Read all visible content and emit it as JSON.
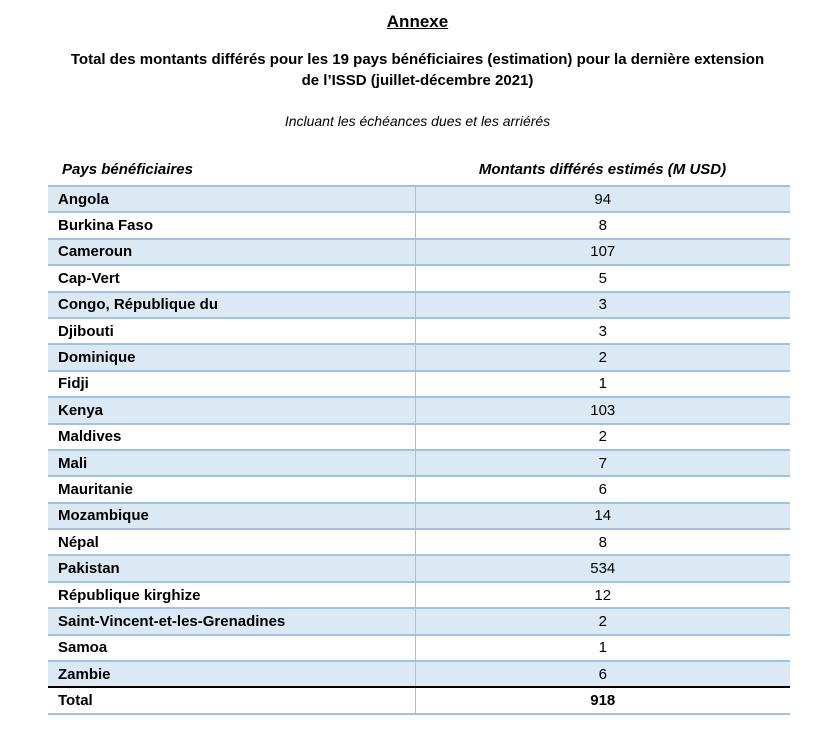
{
  "page": {
    "title": "Annexe",
    "heading_line1": "Total des montants différés pour les 19 pays bénéficiaires (estimation) pour la dernière extension",
    "heading_line2": "de l’ISSD (juillet-décembre 2021)",
    "subtitle": "Incluant les échéances dues et les arriérés"
  },
  "table": {
    "col_country": "Pays bénéficiaires",
    "col_amount": "Montants différés estimés (M USD)",
    "rows": [
      {
        "country": "Angola",
        "amount": "94"
      },
      {
        "country": "Burkina Faso",
        "amount": "8"
      },
      {
        "country": "Cameroun",
        "amount": "107"
      },
      {
        "country": "Cap-Vert",
        "amount": "5"
      },
      {
        "country": "Congo, République du",
        "amount": "3"
      },
      {
        "country": "Djibouti",
        "amount": "3"
      },
      {
        "country": "Dominique",
        "amount": "2"
      },
      {
        "country": "Fidji",
        "amount": "1"
      },
      {
        "country": "Kenya",
        "amount": "103"
      },
      {
        "country": "Maldives",
        "amount": "2"
      },
      {
        "country": "Mali",
        "amount": "7"
      },
      {
        "country": "Mauritanie",
        "amount": "6"
      },
      {
        "country": "Mozambique",
        "amount": "14"
      },
      {
        "country": "Népal",
        "amount": "8"
      },
      {
        "country": "Pakistan",
        "amount": "534"
      },
      {
        "country": "République kirghize",
        "amount": "12"
      },
      {
        "country": "Saint-Vincent-et-les-Grenadines",
        "amount": "2"
      },
      {
        "country": "Samoa",
        "amount": "1"
      },
      {
        "country": "Zambie",
        "amount": "6"
      }
    ],
    "total_label": "Total",
    "total_amount": "918"
  },
  "colors": {
    "row_shade": "#dbe9f5",
    "table_border": "#9dc3e6",
    "total_border": "#000000"
  }
}
